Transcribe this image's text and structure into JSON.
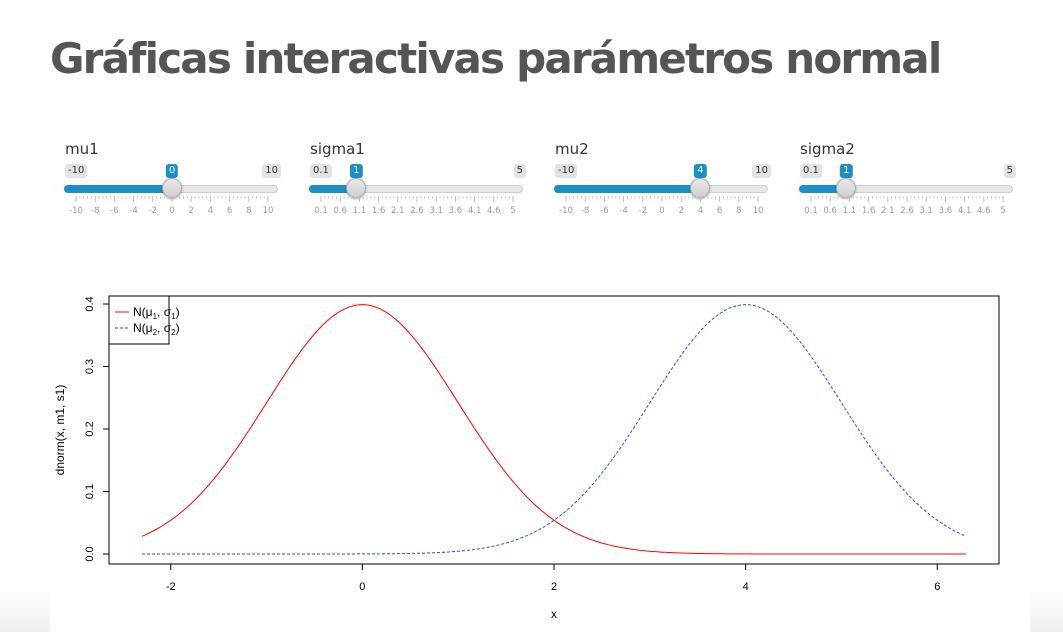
{
  "page": {
    "title": "Gráficas interactivas parámetros normal"
  },
  "sliders": [
    {
      "label": "mu1",
      "min": -10,
      "max": 10,
      "value": 0,
      "min_text": "-10",
      "max_text": "10",
      "value_text": "0",
      "ticks": [
        "-10",
        "-8",
        "-6",
        "-4",
        "-2",
        "0",
        "2",
        "4",
        "6",
        "8",
        "10"
      ]
    },
    {
      "label": "sigma1",
      "min": 0.1,
      "max": 5,
      "value": 1,
      "min_text": "0.1",
      "max_text": "5",
      "value_text": "1",
      "ticks": [
        "0.1",
        "0.6",
        "1.1",
        "1.6",
        "2.1",
        "2.6",
        "3.1",
        "3.6",
        "4.1",
        "4.6",
        "5"
      ]
    },
    {
      "label": "mu2",
      "min": -10,
      "max": 10,
      "value": 4,
      "min_text": "-10",
      "max_text": "10",
      "value_text": "4",
      "ticks": [
        "-10",
        "-8",
        "-6",
        "-4",
        "-2",
        "0",
        "2",
        "4",
        "6",
        "8",
        "10"
      ]
    },
    {
      "label": "sigma2",
      "min": 0.1,
      "max": 5,
      "value": 1,
      "min_text": "0.1",
      "max_text": "5",
      "value_text": "1",
      "ticks": [
        "0.1",
        "0.6",
        "1.1",
        "1.6",
        "2.1",
        "2.6",
        "3.1",
        "3.6",
        "4.1",
        "4.6",
        "5"
      ]
    }
  ],
  "chart_data": {
    "type": "line",
    "xlabel": "x",
    "ylabel": "dnorm(x, m1, s1)",
    "xlim": [
      -2.3,
      6.3
    ],
    "ylim": [
      0,
      0.4
    ],
    "x_ticks": [
      -2,
      0,
      2,
      4,
      6
    ],
    "x_tick_labels": [
      "-2",
      "0",
      "2",
      "4",
      "6"
    ],
    "y_ticks": [
      0.0,
      0.1,
      0.2,
      0.3,
      0.4
    ],
    "y_tick_labels": [
      "0.0",
      "0.1",
      "0.2",
      "0.3",
      "0.4"
    ],
    "legend_position": "top-left",
    "series": [
      {
        "name": "N(μ1, σ1)",
        "legend_main": "N(",
        "legend_mu": "μ",
        "legend_mu_sub": "1",
        "legend_sigma": "σ",
        "legend_sigma_sub": "1",
        "mean": 0,
        "sd": 1,
        "color": "#ff0000",
        "style": "solid"
      },
      {
        "name": "N(μ2, σ2)",
        "legend_main": "N(",
        "legend_mu": "μ",
        "legend_mu_sub": "2",
        "legend_sigma": "σ",
        "legend_sigma_sub": "2",
        "mean": 4,
        "sd": 1,
        "color": "#1f4fe0",
        "style": "dashed"
      }
    ]
  }
}
